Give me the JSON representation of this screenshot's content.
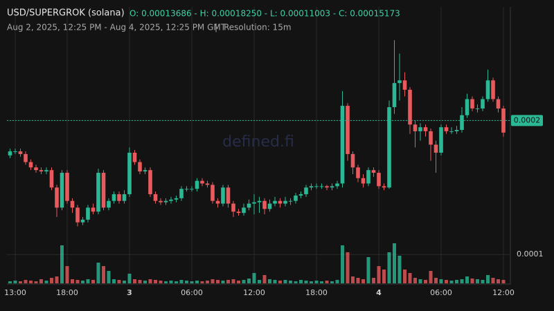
{
  "chart_data": {
    "type": "candlestick",
    "title": "USD/SUPERGROK (solana)",
    "ohlc_summary": "O: 0.00013686 - H: 0.00018250 - L: 0.00011003 - C: 0.00015173",
    "subtitle": "Aug 2, 2025, 12:25 PM - Aug 4, 2025, 12:25 PM GMT",
    "separator": "|",
    "resolution": "Resolution: 15m",
    "watermark": "defined.fi",
    "up_color": "#2bb894",
    "down_color": "#e85a5d",
    "grid": true,
    "categories": [
      null,
      "13:00",
      null,
      null,
      null,
      null,
      null,
      null,
      null,
      null,
      null,
      "18:00",
      null,
      null,
      null,
      null,
      null,
      null,
      null,
      null,
      null,
      null,
      null,
      "3",
      null,
      null,
      null,
      null,
      null,
      null,
      null,
      null,
      null,
      null,
      null,
      "06:00",
      null,
      null,
      null,
      null,
      null,
      null,
      null,
      null,
      null,
      null,
      null,
      "12:00",
      null,
      null,
      null,
      null,
      null,
      null,
      null,
      null,
      null,
      null,
      null,
      "18:00",
      null,
      null,
      null,
      null,
      null,
      null,
      null,
      null,
      null,
      null,
      null,
      "4",
      null,
      null,
      null,
      null,
      null,
      null,
      null,
      null,
      null,
      null,
      null,
      "06:00",
      null,
      null,
      null,
      null,
      null,
      null,
      null,
      null,
      null,
      null,
      null,
      "12:00"
    ],
    "open": [
      0.000174,
      0.000177,
      0.000177,
      0.000175,
      0.000169,
      0.000165,
      0.000163,
      0.000162,
      0.000163,
      0.00015,
      0.000135,
      0.000161,
      0.00014,
      0.000135,
      0.000124,
      0.000126,
      0.000135,
      0.000132,
      0.000161,
      0.000135,
      0.00014,
      0.000145,
      0.00014,
      0.000145,
      0.000176,
      0.000169,
      0.000162,
      0.000163,
      0.000145,
      0.00014,
      0.000139,
      0.00014,
      0.000141,
      0.000142,
      0.000149,
      0.000149,
      0.000149,
      0.000155,
      0.000153,
      0.000152,
      0.00014,
      0.000138,
      0.00015,
      0.000138,
      0.000132,
      0.000131,
      0.000135,
      0.000138,
      0.000139,
      0.00014,
      0.000134,
      0.000138,
      0.00014,
      0.000138,
      0.00014,
      0.00014,
      0.000144,
      0.000145,
      0.00015,
      0.000151,
      0.000151,
      0.000151,
      0.00015,
      0.000151,
      0.000153,
      0.000211,
      0.000175,
      0.000165,
      0.000157,
      0.000153,
      0.000163,
      0.000161,
      0.000151,
      0.00015,
      0.00021,
      0.000228,
      0.00023,
      0.000223,
      0.000197,
      0.000192,
      0.000195,
      0.000192,
      0.000182,
      0.000176,
      0.000195,
      0.000192,
      0.000192,
      0.000193,
      0.000204,
      0.000216,
      0.000209,
      0.000209,
      0.000216,
      0.00023,
      0.000216,
      0.000209
    ],
    "high": [
      0.000179,
      0.000179,
      0.000179,
      0.000177,
      0.000171,
      0.000167,
      0.000165,
      0.000165,
      0.000165,
      0.000152,
      0.000163,
      0.000163,
      0.000142,
      0.000137,
      0.000128,
      0.000137,
      0.000138,
      0.000164,
      0.000163,
      0.000142,
      0.000147,
      0.000147,
      0.000148,
      0.00018,
      0.000178,
      0.000171,
      0.000165,
      0.000165,
      0.000147,
      0.000142,
      0.000142,
      0.000143,
      0.000144,
      0.000151,
      0.000151,
      0.000151,
      0.000157,
      0.000157,
      0.000155,
      0.000154,
      0.000142,
      0.000152,
      0.000152,
      0.00014,
      0.000134,
      0.000138,
      0.000141,
      0.000145,
      0.000143,
      0.000142,
      0.000141,
      0.000143,
      0.000142,
      0.000143,
      0.000142,
      0.000146,
      0.000147,
      0.000152,
      0.000153,
      0.000153,
      0.000153,
      0.000152,
      0.000153,
      0.000155,
      0.000222,
      0.000213,
      0.000177,
      0.000167,
      0.00016,
      0.000165,
      0.000165,
      0.000163,
      0.000153,
      0.000215,
      0.00026,
      0.00025,
      0.000236,
      0.000225,
      0.0002,
      0.000198,
      0.000197,
      0.000194,
      0.000185,
      0.000197,
      0.000197,
      0.000195,
      0.000196,
      0.00021,
      0.00022,
      0.000218,
      0.000212,
      0.000218,
      0.000238,
      0.000232,
      0.000218,
      0.000211
    ],
    "low": [
      0.000172,
      0.000175,
      0.000173,
      0.000167,
      0.000163,
      0.000161,
      0.00016,
      0.00016,
      0.000148,
      0.000128,
      0.000133,
      0.000138,
      0.000131,
      0.000121,
      0.000122,
      0.000124,
      0.00013,
      0.00013,
      0.000133,
      0.000133,
      0.000138,
      0.000138,
      0.000138,
      0.000143,
      0.000167,
      0.00016,
      0.00016,
      0.000143,
      0.000138,
      0.000137,
      0.000137,
      0.000138,
      0.000139,
      0.00014,
      0.000147,
      0.000147,
      0.000147,
      0.000151,
      0.00015,
      0.000138,
      0.000135,
      0.000136,
      0.000135,
      0.000128,
      0.000129,
      0.000129,
      0.000133,
      0.00013,
      0.000131,
      0.00013,
      0.000132,
      0.000136,
      0.000135,
      0.000136,
      0.000137,
      0.000138,
      0.000142,
      0.000143,
      0.000148,
      0.000149,
      0.000149,
      0.000148,
      0.000148,
      0.000149,
      0.00015,
      0.00017,
      0.00016,
      0.000154,
      0.00015,
      0.000151,
      0.000158,
      0.000149,
      0.000148,
      0.000149,
      0.000205,
      0.000215,
      0.000218,
      0.00019,
      0.00018,
      0.000185,
      0.000188,
      0.00017,
      0.000161,
      0.000174,
      0.00019,
      0.00019,
      0.00019,
      0.000191,
      0.000202,
      0.000207,
      0.000206,
      0.000207,
      0.000214,
      0.000214,
      0.000206,
      0.000188
    ],
    "close": [
      0.000177,
      0.000177,
      0.000175,
      0.000169,
      0.000165,
      0.000163,
      0.000162,
      0.000163,
      0.00015,
      0.000135,
      0.000161,
      0.00014,
      0.000135,
      0.000124,
      0.000126,
      0.000135,
      0.000132,
      0.000161,
      0.000135,
      0.00014,
      0.000145,
      0.00014,
      0.000145,
      0.000176,
      0.000169,
      0.000162,
      0.000163,
      0.000145,
      0.00014,
      0.000139,
      0.00014,
      0.000141,
      0.000142,
      0.000149,
      0.000149,
      0.000149,
      0.000155,
      0.000153,
      0.000152,
      0.00014,
      0.000138,
      0.00015,
      0.000138,
      0.000132,
      0.000131,
      0.000135,
      0.000138,
      0.000139,
      0.00014,
      0.000134,
      0.000138,
      0.00014,
      0.000138,
      0.00014,
      0.00014,
      0.000144,
      0.000145,
      0.00015,
      0.000151,
      0.000151,
      0.000151,
      0.00015,
      0.000151,
      0.000153,
      0.000211,
      0.000175,
      0.000165,
      0.000157,
      0.000153,
      0.000163,
      0.000161,
      0.000151,
      0.00015,
      0.00021,
      0.000228,
      0.00023,
      0.000223,
      0.000197,
      0.000192,
      0.000195,
      0.000192,
      0.000182,
      0.000176,
      0.000195,
      0.000192,
      0.000192,
      0.000193,
      0.000204,
      0.000216,
      0.000209,
      0.000209,
      0.000216,
      0.00023,
      0.000216,
      0.000209,
      0.000191
    ],
    "volume": [
      3,
      4,
      3,
      5,
      4,
      3,
      6,
      4,
      8,
      10,
      55,
      25,
      6,
      5,
      4,
      6,
      5,
      30,
      25,
      18,
      6,
      5,
      4,
      14,
      6,
      5,
      4,
      6,
      5,
      4,
      3,
      4,
      3,
      5,
      4,
      3,
      4,
      3,
      4,
      6,
      5,
      4,
      5,
      6,
      4,
      5,
      7,
      15,
      5,
      12,
      6,
      5,
      4,
      5,
      4,
      3,
      5,
      4,
      3,
      4,
      3,
      4,
      3,
      5,
      55,
      45,
      10,
      8,
      6,
      38,
      8,
      25,
      20,
      45,
      58,
      40,
      20,
      15,
      8,
      6,
      5,
      18,
      8,
      6,
      5,
      4,
      5,
      6,
      10,
      7,
      6,
      5,
      12,
      8,
      6,
      5
    ],
    "volume_lim": [
      0,
      60
    ],
    "ylim": [
      8e-05,
      0.00029
    ],
    "yticks": [
      0.0001,
      0.0002
    ],
    "last_price": 0.0002
  }
}
